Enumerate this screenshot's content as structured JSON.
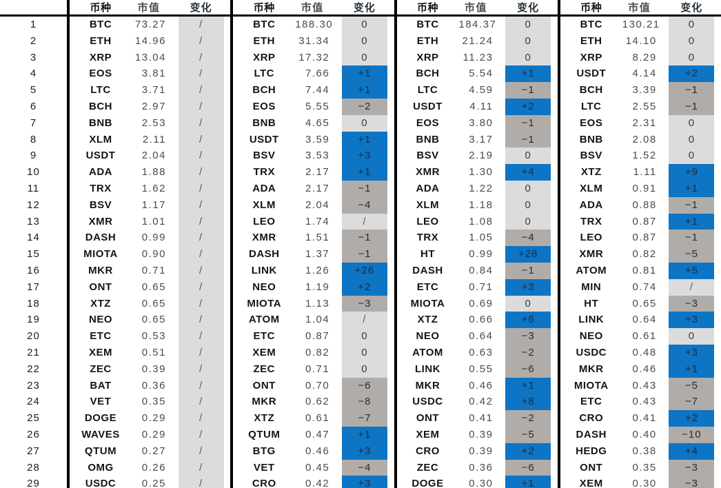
{
  "chart_data": {
    "type": "table",
    "headers": {
      "coin": "币种",
      "cap": "市值",
      "change": "变化"
    },
    "row_numbers": [
      "1",
      "2",
      "3",
      "4",
      "5",
      "6",
      "7",
      "8",
      "9",
      "10",
      "11",
      "12",
      "13",
      "14",
      "15",
      "16",
      "17",
      "18",
      "19",
      "20",
      "21",
      "22",
      "23",
      "24",
      "25",
      "26",
      "27",
      "28",
      "29"
    ],
    "groups": [
      {
        "rows": [
          {
            "coin": "BTC",
            "cap": "73.27",
            "change": "/",
            "state": "none"
          },
          {
            "coin": "ETH",
            "cap": "14.96",
            "change": "/",
            "state": "none"
          },
          {
            "coin": "XRP",
            "cap": "13.04",
            "change": "/",
            "state": "none"
          },
          {
            "coin": "EOS",
            "cap": "3.81",
            "change": "/",
            "state": "none"
          },
          {
            "coin": "LTC",
            "cap": "3.71",
            "change": "/",
            "state": "none"
          },
          {
            "coin": "BCH",
            "cap": "2.97",
            "change": "/",
            "state": "none"
          },
          {
            "coin": "BNB",
            "cap": "2.53",
            "change": "/",
            "state": "none"
          },
          {
            "coin": "XLM",
            "cap": "2.11",
            "change": "/",
            "state": "none"
          },
          {
            "coin": "USDT",
            "cap": "2.04",
            "change": "/",
            "state": "none"
          },
          {
            "coin": "ADA",
            "cap": "1.88",
            "change": "/",
            "state": "none"
          },
          {
            "coin": "TRX",
            "cap": "1.62",
            "change": "/",
            "state": "none"
          },
          {
            "coin": "BSV",
            "cap": "1.17",
            "change": "/",
            "state": "none"
          },
          {
            "coin": "XMR",
            "cap": "1.01",
            "change": "/",
            "state": "none"
          },
          {
            "coin": "DASH",
            "cap": "0.99",
            "change": "/",
            "state": "none"
          },
          {
            "coin": "MIOTA",
            "cap": "0.90",
            "change": "/",
            "state": "none"
          },
          {
            "coin": "MKR",
            "cap": "0.71",
            "change": "/",
            "state": "none"
          },
          {
            "coin": "ONT",
            "cap": "0.65",
            "change": "/",
            "state": "none"
          },
          {
            "coin": "XTZ",
            "cap": "0.65",
            "change": "/",
            "state": "none"
          },
          {
            "coin": "NEO",
            "cap": "0.65",
            "change": "/",
            "state": "none"
          },
          {
            "coin": "ETC",
            "cap": "0.53",
            "change": "/",
            "state": "none"
          },
          {
            "coin": "XEM",
            "cap": "0.51",
            "change": "/",
            "state": "none"
          },
          {
            "coin": "ZEC",
            "cap": "0.39",
            "change": "/",
            "state": "none"
          },
          {
            "coin": "BAT",
            "cap": "0.36",
            "change": "/",
            "state": "none"
          },
          {
            "coin": "VET",
            "cap": "0.35",
            "change": "/",
            "state": "none"
          },
          {
            "coin": "DOGE",
            "cap": "0.29",
            "change": "/",
            "state": "none"
          },
          {
            "coin": "WAVES",
            "cap": "0.29",
            "change": "/",
            "state": "none"
          },
          {
            "coin": "QTUM",
            "cap": "0.27",
            "change": "/",
            "state": "none"
          },
          {
            "coin": "OMG",
            "cap": "0.26",
            "change": "/",
            "state": "none"
          },
          {
            "coin": "USDC",
            "cap": "0.25",
            "change": "/",
            "state": "none"
          }
        ]
      },
      {
        "rows": [
          {
            "coin": "BTC",
            "cap": "188.30",
            "change": "0",
            "state": "flat"
          },
          {
            "coin": "ETH",
            "cap": "31.34",
            "change": "0",
            "state": "flat"
          },
          {
            "coin": "XRP",
            "cap": "17.32",
            "change": "0",
            "state": "flat"
          },
          {
            "coin": "LTC",
            "cap": "7.66",
            "change": "+1",
            "state": "up"
          },
          {
            "coin": "BCH",
            "cap": "7.44",
            "change": "+1",
            "state": "up"
          },
          {
            "coin": "EOS",
            "cap": "5.55",
            "change": "−2",
            "state": "down"
          },
          {
            "coin": "BNB",
            "cap": "4.65",
            "change": "0",
            "state": "flat"
          },
          {
            "coin": "USDT",
            "cap": "3.59",
            "change": "+1",
            "state": "up"
          },
          {
            "coin": "BSV",
            "cap": "3.53",
            "change": "+3",
            "state": "up"
          },
          {
            "coin": "TRX",
            "cap": "2.17",
            "change": "+1",
            "state": "up"
          },
          {
            "coin": "ADA",
            "cap": "2.17",
            "change": "−1",
            "state": "down"
          },
          {
            "coin": "XLM",
            "cap": "2.04",
            "change": "−4",
            "state": "down"
          },
          {
            "coin": "LEO",
            "cap": "1.74",
            "change": "/",
            "state": "none"
          },
          {
            "coin": "XMR",
            "cap": "1.51",
            "change": "−1",
            "state": "down"
          },
          {
            "coin": "DASH",
            "cap": "1.37",
            "change": "−1",
            "state": "down"
          },
          {
            "coin": "LINK",
            "cap": "1.26",
            "change": "+26",
            "state": "up"
          },
          {
            "coin": "NEO",
            "cap": "1.19",
            "change": "+2",
            "state": "up"
          },
          {
            "coin": "MIOTA",
            "cap": "1.13",
            "change": "−3",
            "state": "down"
          },
          {
            "coin": "ATOM",
            "cap": "1.04",
            "change": "/",
            "state": "none"
          },
          {
            "coin": "ETC",
            "cap": "0.87",
            "change": "0",
            "state": "flat"
          },
          {
            "coin": "XEM",
            "cap": "0.82",
            "change": "0",
            "state": "flat"
          },
          {
            "coin": "ZEC",
            "cap": "0.71",
            "change": "0",
            "state": "flat"
          },
          {
            "coin": "ONT",
            "cap": "0.70",
            "change": "−6",
            "state": "down"
          },
          {
            "coin": "MKR",
            "cap": "0.62",
            "change": "−8",
            "state": "down"
          },
          {
            "coin": "XTZ",
            "cap": "0.61",
            "change": "−7",
            "state": "down"
          },
          {
            "coin": "QTUM",
            "cap": "0.47",
            "change": "+1",
            "state": "up"
          },
          {
            "coin": "BTG",
            "cap": "0.46",
            "change": "+3",
            "state": "up"
          },
          {
            "coin": "VET",
            "cap": "0.45",
            "change": "−4",
            "state": "down"
          },
          {
            "coin": "CRO",
            "cap": "0.42",
            "change": "+3",
            "state": "up"
          }
        ]
      },
      {
        "rows": [
          {
            "coin": "BTC",
            "cap": "184.37",
            "change": "0",
            "state": "flat"
          },
          {
            "coin": "ETH",
            "cap": "21.24",
            "change": "0",
            "state": "flat"
          },
          {
            "coin": "XRP",
            "cap": "11.23",
            "change": "0",
            "state": "flat"
          },
          {
            "coin": "BCH",
            "cap": "5.54",
            "change": "+1",
            "state": "up"
          },
          {
            "coin": "LTC",
            "cap": "4.59",
            "change": "−1",
            "state": "down"
          },
          {
            "coin": "USDT",
            "cap": "4.11",
            "change": "+2",
            "state": "up"
          },
          {
            "coin": "EOS",
            "cap": "3.80",
            "change": "−1",
            "state": "down"
          },
          {
            "coin": "BNB",
            "cap": "3.17",
            "change": "−1",
            "state": "down"
          },
          {
            "coin": "BSV",
            "cap": "2.19",
            "change": "0",
            "state": "flat"
          },
          {
            "coin": "XMR",
            "cap": "1.30",
            "change": "+4",
            "state": "up"
          },
          {
            "coin": "ADA",
            "cap": "1.22",
            "change": "0",
            "state": "flat"
          },
          {
            "coin": "XLM",
            "cap": "1.18",
            "change": "0",
            "state": "flat"
          },
          {
            "coin": "LEO",
            "cap": "1.08",
            "change": "0",
            "state": "flat"
          },
          {
            "coin": "TRX",
            "cap": "1.05",
            "change": "−4",
            "state": "down"
          },
          {
            "coin": "HT",
            "cap": "0.99",
            "change": "+28",
            "state": "up"
          },
          {
            "coin": "DASH",
            "cap": "0.84",
            "change": "−1",
            "state": "down"
          },
          {
            "coin": "ETC",
            "cap": "0.71",
            "change": "+3",
            "state": "up"
          },
          {
            "coin": "MIOTA",
            "cap": "0.69",
            "change": "0",
            "state": "flat"
          },
          {
            "coin": "XTZ",
            "cap": "0.66",
            "change": "+6",
            "state": "up"
          },
          {
            "coin": "NEO",
            "cap": "0.64",
            "change": "−3",
            "state": "down"
          },
          {
            "coin": "ATOM",
            "cap": "0.63",
            "change": "−2",
            "state": "down"
          },
          {
            "coin": "LINK",
            "cap": "0.55",
            "change": "−6",
            "state": "down"
          },
          {
            "coin": "MKR",
            "cap": "0.46",
            "change": "+1",
            "state": "up"
          },
          {
            "coin": "USDC",
            "cap": "0.42",
            "change": "+8",
            "state": "up"
          },
          {
            "coin": "ONT",
            "cap": "0.41",
            "change": "−2",
            "state": "down"
          },
          {
            "coin": "XEM",
            "cap": "0.39",
            "change": "−5",
            "state": "down"
          },
          {
            "coin": "CRO",
            "cap": "0.39",
            "change": "+2",
            "state": "up"
          },
          {
            "coin": "ZEC",
            "cap": "0.36",
            "change": "−6",
            "state": "down"
          },
          {
            "coin": "DOGE",
            "cap": "0.30",
            "change": "+1",
            "state": "up"
          }
        ]
      },
      {
        "rows": [
          {
            "coin": "BTC",
            "cap": "130.21",
            "change": "0",
            "state": "flat"
          },
          {
            "coin": "ETH",
            "cap": "14.10",
            "change": "0",
            "state": "flat"
          },
          {
            "coin": "XRP",
            "cap": "8.29",
            "change": "0",
            "state": "flat"
          },
          {
            "coin": "USDT",
            "cap": "4.14",
            "change": "+2",
            "state": "up"
          },
          {
            "coin": "BCH",
            "cap": "3.39",
            "change": "−1",
            "state": "down"
          },
          {
            "coin": "LTC",
            "cap": "2.55",
            "change": "−1",
            "state": "down"
          },
          {
            "coin": "EOS",
            "cap": "2.31",
            "change": "0",
            "state": "flat"
          },
          {
            "coin": "BNB",
            "cap": "2.08",
            "change": "0",
            "state": "flat"
          },
          {
            "coin": "BSV",
            "cap": "1.52",
            "change": "0",
            "state": "flat"
          },
          {
            "coin": "XTZ",
            "cap": "1.11",
            "change": "+9",
            "state": "up"
          },
          {
            "coin": "XLM",
            "cap": "0.91",
            "change": "+1",
            "state": "up"
          },
          {
            "coin": "ADA",
            "cap": "0.88",
            "change": "−1",
            "state": "down"
          },
          {
            "coin": "TRX",
            "cap": "0.87",
            "change": "+1",
            "state": "up"
          },
          {
            "coin": "LEO",
            "cap": "0.87",
            "change": "−1",
            "state": "down"
          },
          {
            "coin": "XMR",
            "cap": "0.82",
            "change": "−5",
            "state": "down"
          },
          {
            "coin": "ATOM",
            "cap": "0.81",
            "change": "+5",
            "state": "up"
          },
          {
            "coin": "MIN",
            "cap": "0.74",
            "change": "/",
            "state": "none"
          },
          {
            "coin": "HT",
            "cap": "0.65",
            "change": "−3",
            "state": "down"
          },
          {
            "coin": "LINK",
            "cap": "0.64",
            "change": "+3",
            "state": "up"
          },
          {
            "coin": "NEO",
            "cap": "0.61",
            "change": "0",
            "state": "flat"
          },
          {
            "coin": "USDC",
            "cap": "0.48",
            "change": "+3",
            "state": "up"
          },
          {
            "coin": "MKR",
            "cap": "0.46",
            "change": "+1",
            "state": "up"
          },
          {
            "coin": "MIOTA",
            "cap": "0.43",
            "change": "−5",
            "state": "down"
          },
          {
            "coin": "ETC",
            "cap": "0.43",
            "change": "−7",
            "state": "down"
          },
          {
            "coin": "CRO",
            "cap": "0.41",
            "change": "+2",
            "state": "up"
          },
          {
            "coin": "DASH",
            "cap": "0.40",
            "change": "−10",
            "state": "down"
          },
          {
            "coin": "HEDG",
            "cap": "0.38",
            "change": "+4",
            "state": "up"
          },
          {
            "coin": "ONT",
            "cap": "0.35",
            "change": "−3",
            "state": "down"
          },
          {
            "coin": "XEM",
            "cap": "0.30",
            "change": "−3",
            "state": "down"
          }
        ]
      }
    ]
  },
  "colors": {
    "up": "#0e74c4",
    "down": "#b0aca9",
    "flat": "#dcdcdc",
    "none": "#dcdcdc",
    "border": "#000000"
  }
}
